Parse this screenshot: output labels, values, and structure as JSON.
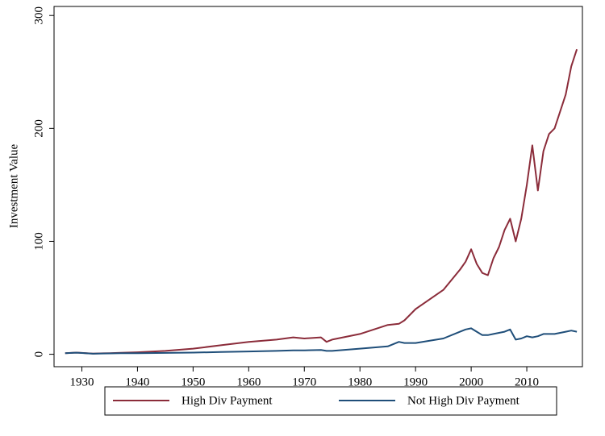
{
  "chart_data": {
    "type": "line",
    "y_label": "Investment Value",
    "x": [
      1927,
      1929,
      1930,
      1932,
      1935,
      1937,
      1940,
      1945,
      1950,
      1955,
      1960,
      1965,
      1968,
      1970,
      1973,
      1974,
      1975,
      1980,
      1985,
      1987,
      1988,
      1990,
      1995,
      1998,
      1999,
      2000,
      2001,
      2002,
      2003,
      2004,
      2005,
      2006,
      2007,
      2008,
      2009,
      2010,
      2011,
      2012,
      2013,
      2014,
      2015,
      2016,
      2017,
      2018,
      2019
    ],
    "series": [
      {
        "name": "High Div Payment",
        "color": "#8b2c3a",
        "values": [
          1,
          1.5,
          1.2,
          0.6,
          1,
          1.3,
          1.8,
          3,
          5,
          8,
          11,
          13,
          15,
          14,
          15,
          11,
          13,
          18,
          26,
          27,
          30,
          40,
          57,
          75,
          82,
          93,
          80,
          72,
          70,
          85,
          95,
          110,
          120,
          100,
          120,
          150,
          185,
          145,
          180,
          195,
          200,
          215,
          230,
          255,
          270
        ]
      },
      {
        "name": "Not High Div Payment",
        "color": "#1f4e79",
        "values": [
          1,
          1.4,
          1.1,
          0.5,
          0.8,
          0.9,
          1,
          1.2,
          1.5,
          2,
          2.5,
          3,
          3.5,
          3.5,
          3.8,
          3,
          3,
          5,
          7,
          11,
          10,
          10,
          14,
          20,
          22,
          23,
          20,
          17,
          17,
          18,
          19,
          20,
          22,
          13,
          14,
          16,
          15,
          16,
          18,
          18,
          18,
          19,
          20,
          21,
          20
        ]
      }
    ],
    "xlim": [
      1925,
      2020
    ],
    "xticks": [
      1930,
      1940,
      1950,
      1960,
      1970,
      1980,
      1990,
      2000,
      2010
    ],
    "ylim": [
      -11,
      308
    ],
    "yticks": [
      0,
      100,
      200,
      300
    ],
    "legend": "bottom"
  }
}
